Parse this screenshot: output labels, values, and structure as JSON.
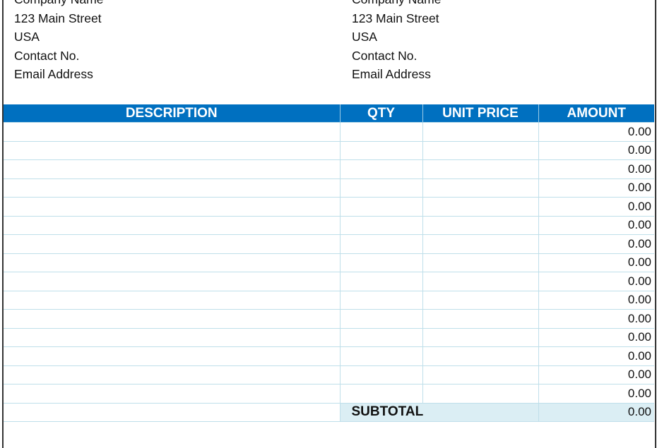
{
  "from": {
    "company": "Company Name",
    "street": "123 Main Street",
    "country": "USA",
    "contact": "Contact No.",
    "email": "Email Address"
  },
  "to": {
    "company": "Company Name",
    "street": "123 Main Street",
    "country": "USA",
    "contact": "Contact No.",
    "email": "Email Address"
  },
  "table": {
    "headers": [
      "DESCRIPTION",
      "QTY",
      "UNIT PRICE",
      "AMOUNT"
    ],
    "rows": [
      {
        "description": "",
        "qty": "",
        "unit_price": "",
        "amount": "0.00"
      },
      {
        "description": "",
        "qty": "",
        "unit_price": "",
        "amount": "0.00"
      },
      {
        "description": "",
        "qty": "",
        "unit_price": "",
        "amount": "0.00"
      },
      {
        "description": "",
        "qty": "",
        "unit_price": "",
        "amount": "0.00"
      },
      {
        "description": "",
        "qty": "",
        "unit_price": "",
        "amount": "0.00"
      },
      {
        "description": "",
        "qty": "",
        "unit_price": "",
        "amount": "0.00"
      },
      {
        "description": "",
        "qty": "",
        "unit_price": "",
        "amount": "0.00"
      },
      {
        "description": "",
        "qty": "",
        "unit_price": "",
        "amount": "0.00"
      },
      {
        "description": "",
        "qty": "",
        "unit_price": "",
        "amount": "0.00"
      },
      {
        "description": "",
        "qty": "",
        "unit_price": "",
        "amount": "0.00"
      },
      {
        "description": "",
        "qty": "",
        "unit_price": "",
        "amount": "0.00"
      },
      {
        "description": "",
        "qty": "",
        "unit_price": "",
        "amount": "0.00"
      },
      {
        "description": "",
        "qty": "",
        "unit_price": "",
        "amount": "0.00"
      },
      {
        "description": "",
        "qty": "",
        "unit_price": "",
        "amount": "0.00"
      },
      {
        "description": "",
        "qty": "",
        "unit_price": "",
        "amount": "0.00"
      }
    ],
    "subtotal_label": "SUBTOTAL",
    "subtotal_value": "0.00"
  },
  "colors": {
    "header_bg": "#0070c0",
    "subtotal_bg": "#dbeef4",
    "grid": "#bfdfea"
  }
}
